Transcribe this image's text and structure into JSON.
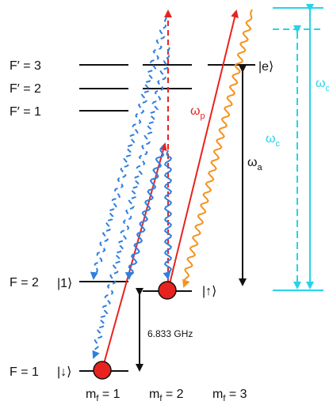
{
  "excited": {
    "labels": [
      "F′ = 3",
      "F′ = 2",
      "F′ = 1"
    ],
    "state": "|e⟩"
  },
  "ground": {
    "upper": {
      "label": "F = 2",
      "state_left": "|1⟩",
      "state_right": "|↑⟩"
    },
    "lower": {
      "label": "F = 1",
      "state": "|↓⟩"
    }
  },
  "splitting": "6.833 GHz",
  "frequencies": {
    "wp": {
      "sym": "ω",
      "sub": "p"
    },
    "wa": {
      "sym": "ω",
      "sub": "a"
    },
    "wc": {
      "sym": "ω",
      "sub": "c"
    },
    "wcp": {
      "sym": "ω",
      "sub": "c′"
    }
  },
  "mf_labels": [
    {
      "base": "m",
      "sub": "f",
      "rest": " = 1"
    },
    {
      "base": "m",
      "sub": "f",
      "rest": " = 2"
    },
    {
      "base": "m",
      "sub": "f",
      "rest": " = 3"
    }
  ],
  "colors": {
    "probe": "#e8231f",
    "coupling": "#2f7fe0",
    "scatter": "#f5921e",
    "cyan": "#27d3ea",
    "atom": "#e8231f",
    "line": "#111111"
  }
}
